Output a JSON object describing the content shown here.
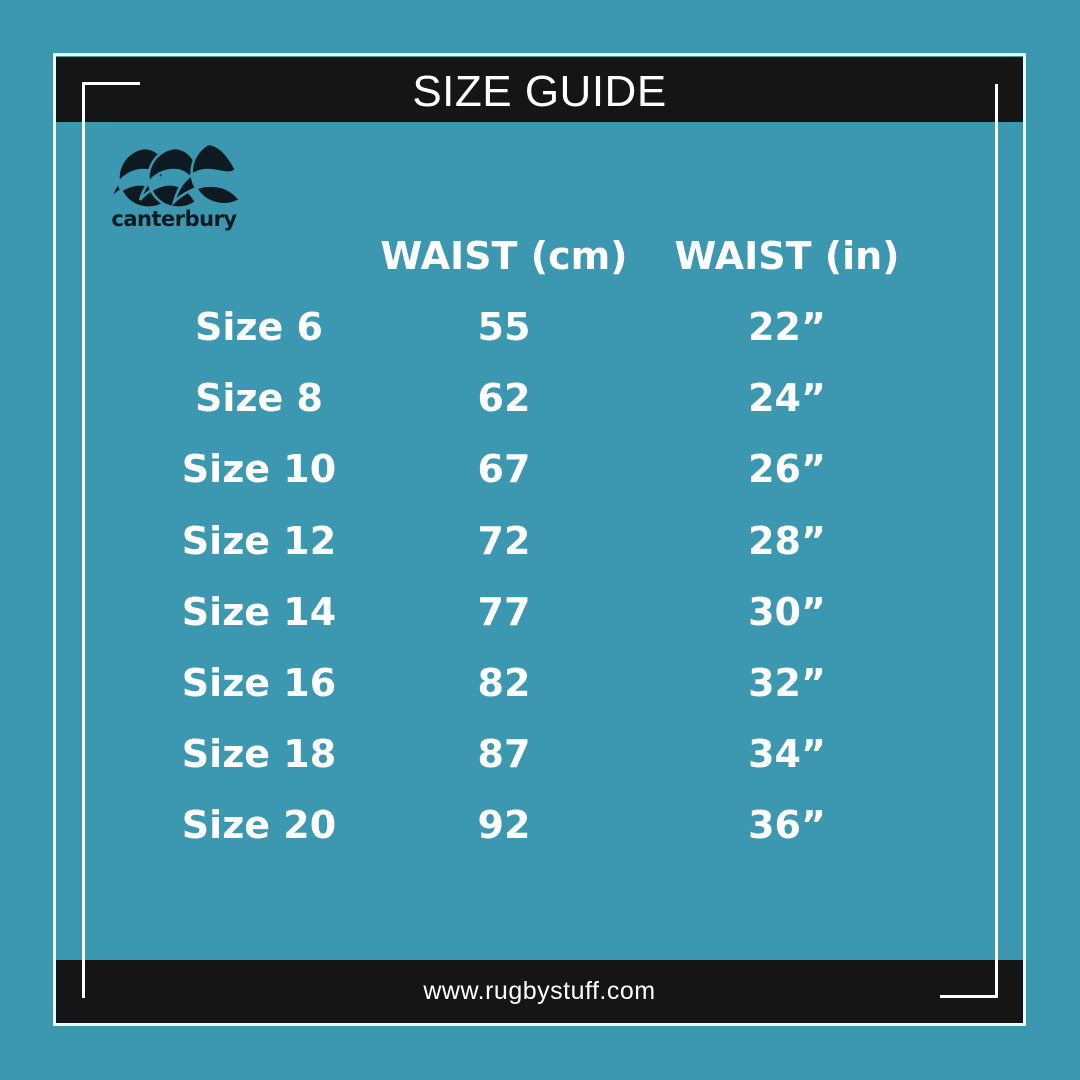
{
  "title": "SIZE GUIDE",
  "brand": "canterbury",
  "footer_url": "www.rugbystuff.com",
  "colors": {
    "background": "#3c97b0",
    "bar": "#151515",
    "text": "#ffffff"
  },
  "table": {
    "headers": [
      "",
      "WAIST (cm)",
      "WAIST (in)"
    ],
    "rows": [
      {
        "size": "Size 6",
        "cm": "55",
        "in": "22”"
      },
      {
        "size": "Size 8",
        "cm": "62",
        "in": "24”"
      },
      {
        "size": "Size 10",
        "cm": "67",
        "in": "26”"
      },
      {
        "size": "Size 12",
        "cm": "72",
        "in": "28”"
      },
      {
        "size": "Size 14",
        "cm": "77",
        "in": "30”"
      },
      {
        "size": "Size 16",
        "cm": "82",
        "in": "32”"
      },
      {
        "size": "Size 18",
        "cm": "87",
        "in": "34”"
      },
      {
        "size": "Size 20",
        "cm": "92",
        "in": "36”"
      }
    ]
  }
}
